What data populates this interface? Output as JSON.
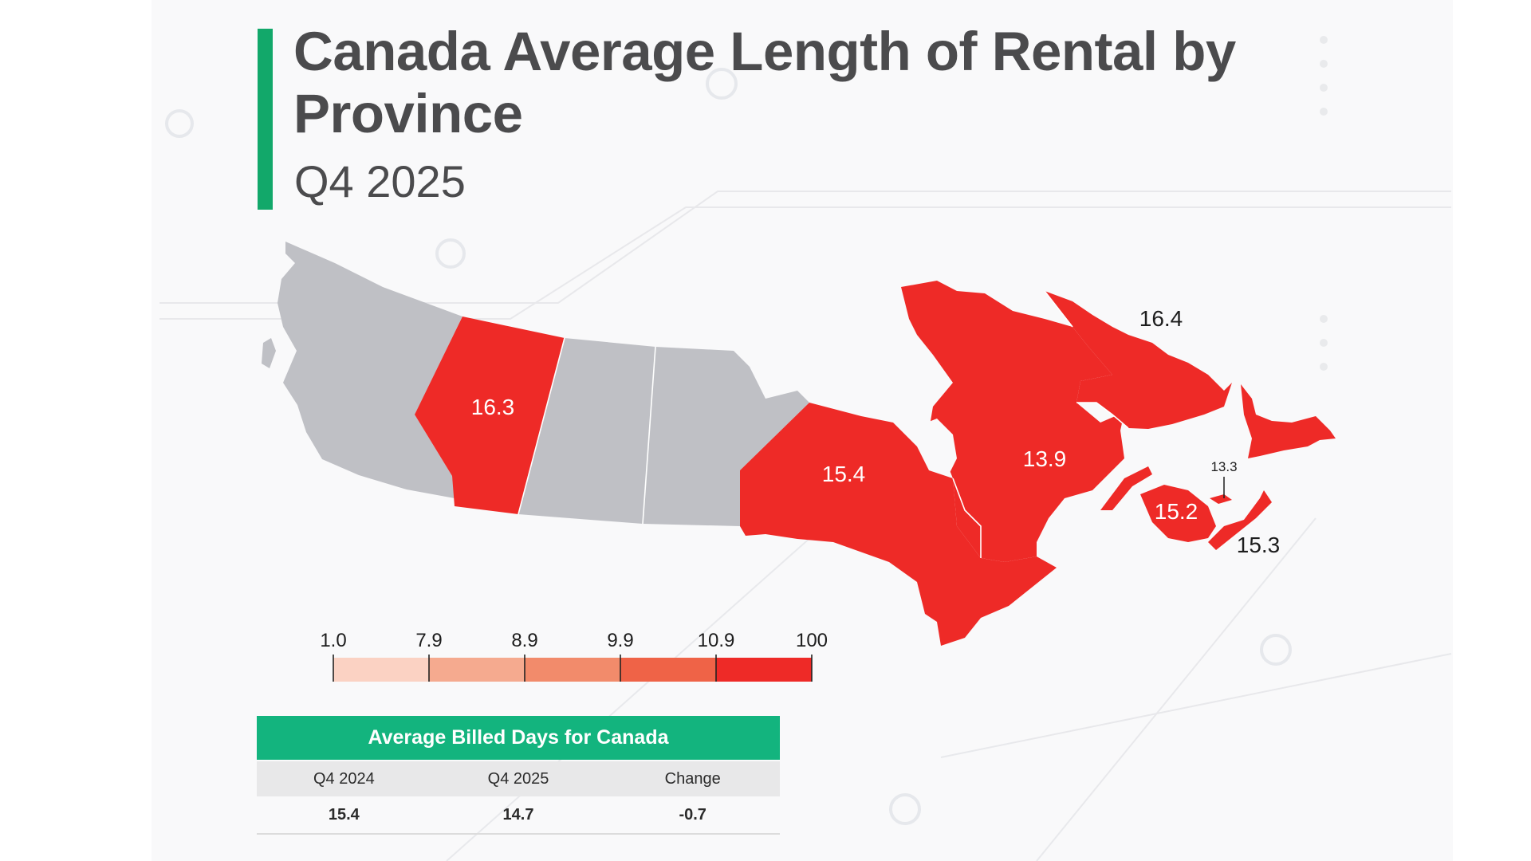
{
  "title": "Canada Average Length of Rental by Province",
  "subtitle": "Q4 2025",
  "colors": {
    "accent": "#12a86a",
    "no_data": "#bfc0c5",
    "high": "#ee2a27",
    "table_header": "#13b47e"
  },
  "map_labels": {
    "alberta": "16.3",
    "ontario": "15.4",
    "quebec": "13.9",
    "newfoundland_labrador": "16.4",
    "new_brunswick": "15.2",
    "prince_edward_island": "13.3",
    "nova_scotia": "15.3"
  },
  "legend": {
    "ticks": [
      "1.0",
      "7.9",
      "8.9",
      "9.9",
      "10.9",
      "100"
    ],
    "colors": [
      "#fbd2c3",
      "#f5aa8f",
      "#f28b6b",
      "#ef6347",
      "#ee2a27"
    ]
  },
  "table": {
    "header": "Average Billed Days for Canada",
    "columns": [
      "Q4 2024",
      "Q4 2025",
      "Change"
    ],
    "values": [
      "15.4",
      "14.7",
      "-0.7"
    ]
  },
  "chart_data": {
    "type": "choropleth",
    "title": "Canada Average Length of Rental by Province",
    "subtitle": "Q4 2025",
    "regions": [
      {
        "name": "Alberta",
        "value": 16.3
      },
      {
        "name": "Ontario",
        "value": 15.4
      },
      {
        "name": "Quebec",
        "value": 13.9
      },
      {
        "name": "Newfoundland and Labrador",
        "value": 16.4
      },
      {
        "name": "New Brunswick",
        "value": 15.2
      },
      {
        "name": "Prince Edward Island",
        "value": 13.3
      },
      {
        "name": "Nova Scotia",
        "value": 15.3
      }
    ],
    "scale_breaks": [
      1.0,
      7.9,
      8.9,
      9.9,
      10.9,
      100
    ],
    "summary": {
      "Q4 2024": 15.4,
      "Q4 2025": 14.7,
      "Change": -0.7
    }
  }
}
